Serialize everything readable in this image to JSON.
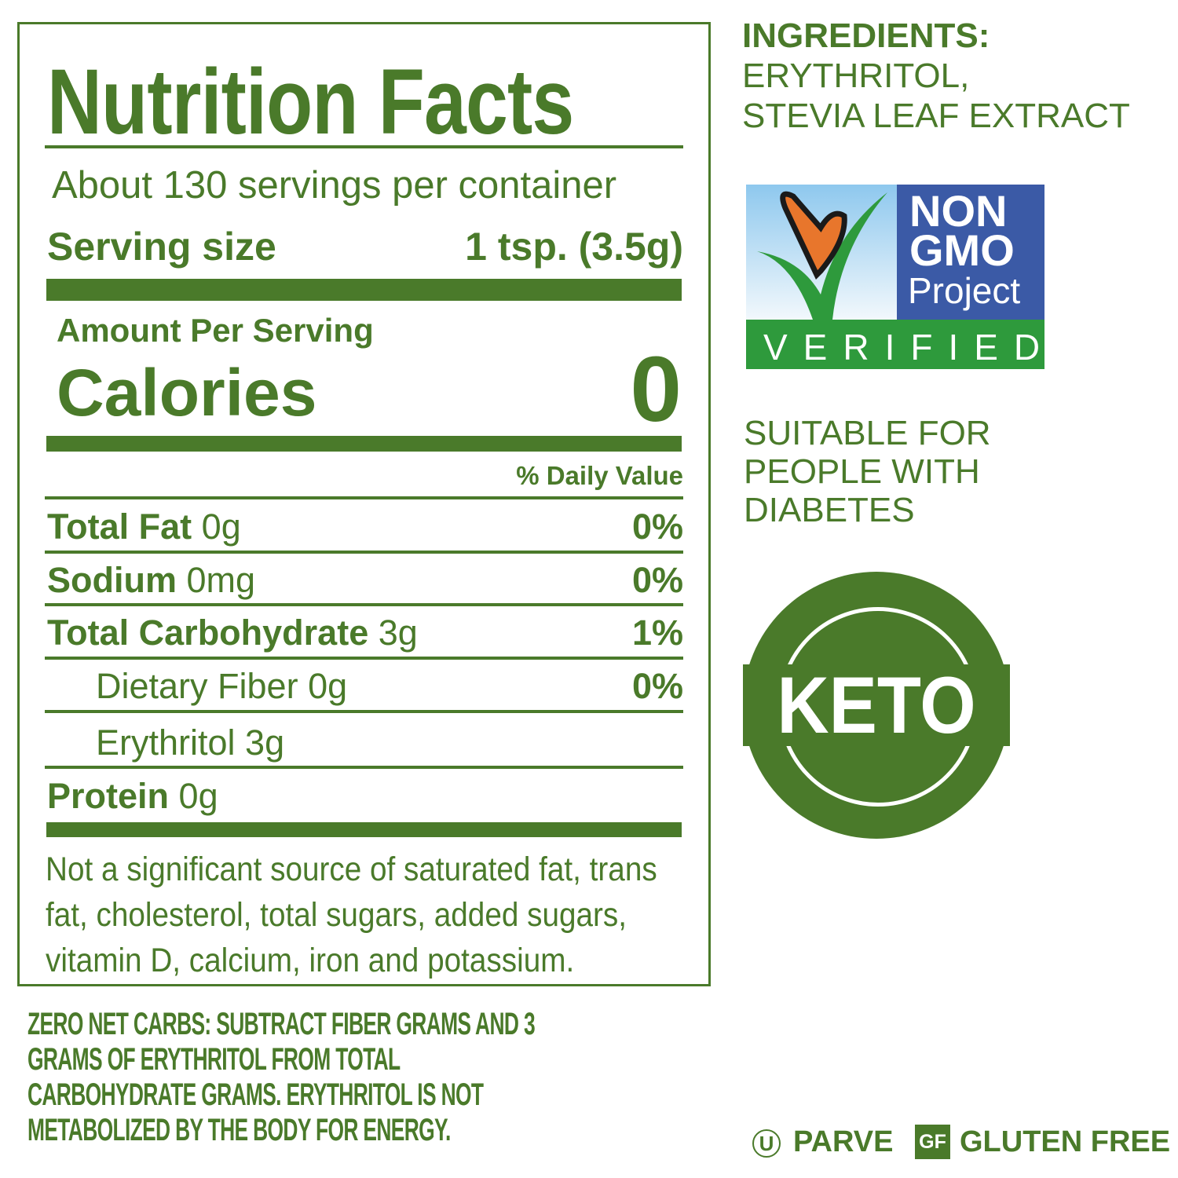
{
  "label": {
    "title": "Nutrition Facts",
    "servings": "About 130 servings per container",
    "serving_size_label": "Serving size",
    "serving_size_value": "1 tsp. (3.5g)",
    "amount_per_serving": "Amount Per Serving",
    "calories_label": "Calories",
    "calories_value": "0",
    "daily_value_header": "% Daily Value",
    "nutrients": [
      {
        "name": "Total Fat",
        "amount": "0g",
        "dv": "0%"
      },
      {
        "name": "Sodium",
        "amount": "0mg",
        "dv": "0%"
      },
      {
        "name": "Total Carbohydrate",
        "amount": "3g",
        "dv": "1%"
      },
      {
        "name": "Dietary Fiber 0g",
        "amount": "",
        "dv": "0%"
      },
      {
        "name": "Erythritol 3g",
        "amount": "",
        "dv": ""
      },
      {
        "name": "Protein",
        "amount": "0g",
        "dv": ""
      }
    ],
    "footnote": "Not a significant source of saturated fat, trans fat, cholesterol, total sugars, added sugars, vitamin D, calcium, iron and potassium."
  },
  "ingredients": {
    "heading": "INGREDIENTS:",
    "line1": "ERYTHRITOL,",
    "line2": "STEVIA LEAF EXTRACT"
  },
  "non_gmo": {
    "line1": "NON",
    "line2": "GMO",
    "line3": "Project",
    "verified": "VERIFIED"
  },
  "suitable": {
    "line1": "SUITABLE  FOR",
    "line2": "PEOPLE WITH",
    "line3": "DIABETES"
  },
  "keto_badge": "KETO",
  "net_carbs": {
    "line1": "ZERO NET CARBS:  SUBTRACT FIBER GRAMS AND 3",
    "line2": "GRAMS OF ERYTHRITOL FROM TOTAL",
    "line3": "CARBOHYDRATE GRAMS.  ERYTHRITOL IS NOT",
    "line4": "METABOLIZED BY THE BODY FOR ENERGY."
  },
  "badges": {
    "parve_symbol": "U",
    "parve": "PARVE",
    "gf_symbol": "GF",
    "gluten_free": "GLUTEN FREE"
  },
  "colors": {
    "green": "#4a7a2a",
    "gmo_blue": "#3b5aa6",
    "gmo_green": "#2e9a3c",
    "butterfly": "#e8762c"
  }
}
